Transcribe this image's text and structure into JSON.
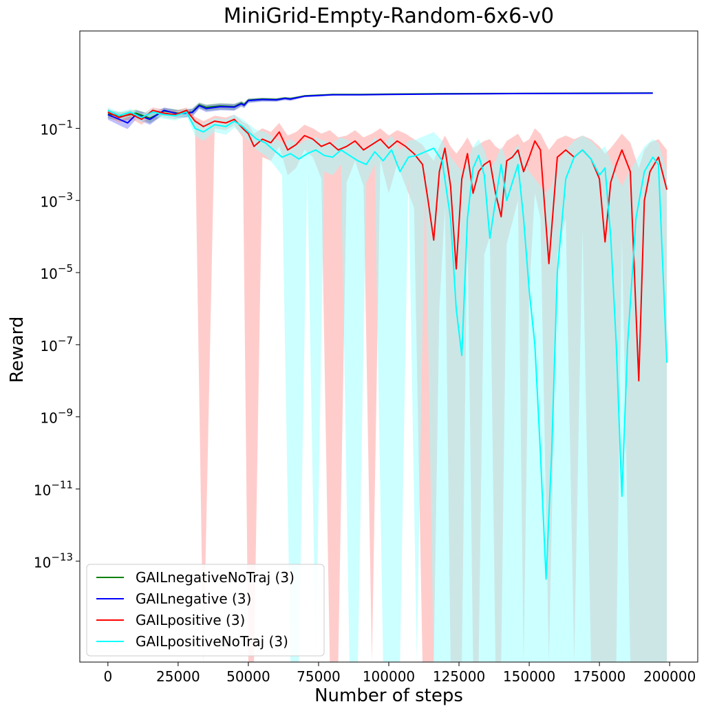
{
  "chart_data": {
    "type": "line",
    "title": "MiniGrid-Empty-Random-6x6-v0",
    "xlabel": "Number of steps",
    "ylabel": "Reward",
    "y_scale": "log",
    "xlim": [
      -10000,
      210000
    ],
    "ylim_log10": [
      -15.8,
      1.7
    ],
    "x_ticks": [
      0,
      25000,
      50000,
      75000,
      100000,
      125000,
      150000,
      175000,
      200000
    ],
    "x_tick_labels": [
      "0",
      "25000",
      "50000",
      "75000",
      "100000",
      "125000",
      "150000",
      "175000",
      "200000"
    ],
    "y_ticks_log10": [
      -1,
      -3,
      -5,
      -7,
      -9,
      -11,
      -13
    ],
    "y_tick_labels": [
      {
        "base": "10",
        "exp": "−1"
      },
      {
        "base": "10",
        "exp": "−3"
      },
      {
        "base": "10",
        "exp": "−5"
      },
      {
        "base": "10",
        "exp": "−7"
      },
      {
        "base": "10",
        "exp": "−9"
      },
      {
        "base": "10",
        "exp": "−11"
      },
      {
        "base": "10",
        "exp": "−13"
      }
    ],
    "legend_position": "lower-left",
    "series": [
      {
        "name": "GAILnegativeNoTraj (3)",
        "color": "#008000",
        "x": [
          0,
          5000,
          10000,
          15000,
          20000,
          25000,
          30000,
          32500,
          35000,
          40000,
          45000,
          47500,
          48500,
          50000,
          55000,
          60000,
          63000,
          65000,
          70000,
          75000,
          80000,
          90000,
          100000,
          115000,
          135000,
          150000,
          170000,
          194000
        ],
        "y_log10": [
          -0.6,
          -0.67,
          -0.58,
          -0.72,
          -0.52,
          -0.58,
          -0.55,
          -0.35,
          -0.42,
          -0.38,
          -0.4,
          -0.3,
          -0.34,
          -0.22,
          -0.19,
          -0.2,
          -0.16,
          -0.18,
          -0.1,
          -0.08,
          -0.06,
          -0.06,
          -0.05,
          -0.04,
          -0.035,
          -0.03,
          -0.025,
          -0.02
        ],
        "y_upper_log10": [
          -0.5,
          -0.55,
          -0.48,
          -0.6,
          -0.44,
          -0.48,
          -0.45,
          -0.28,
          -0.34,
          -0.3,
          -0.32,
          -0.24,
          -0.28,
          -0.17,
          -0.15,
          -0.16,
          -0.13,
          -0.14,
          -0.08,
          -0.06,
          -0.05,
          -0.05,
          -0.04,
          -0.03,
          -0.03,
          -0.025,
          -0.02,
          -0.015
        ],
        "y_lower_log10": [
          -0.72,
          -0.82,
          -0.7,
          -0.86,
          -0.62,
          -0.7,
          -0.66,
          -0.44,
          -0.52,
          -0.48,
          -0.5,
          -0.38,
          -0.42,
          -0.28,
          -0.24,
          -0.25,
          -0.2,
          -0.22,
          -0.12,
          -0.1,
          -0.08,
          -0.07,
          -0.06,
          -0.05,
          -0.04,
          -0.035,
          -0.03,
          -0.025
        ]
      },
      {
        "name": "GAILnegative (3)",
        "color": "#0000ff",
        "x": [
          0,
          5000,
          7000,
          10000,
          15000,
          20000,
          25000,
          30000,
          32500,
          35000,
          40000,
          45000,
          47500,
          48500,
          50000,
          55000,
          60000,
          63000,
          65000,
          70000,
          75000,
          80000,
          90000,
          100000,
          115000,
          135000,
          150000,
          170000,
          194000
        ],
        "y_log10": [
          -0.62,
          -0.78,
          -0.85,
          -0.62,
          -0.75,
          -0.5,
          -0.6,
          -0.56,
          -0.37,
          -0.45,
          -0.4,
          -0.41,
          -0.32,
          -0.36,
          -0.23,
          -0.2,
          -0.21,
          -0.17,
          -0.19,
          -0.11,
          -0.09,
          -0.07,
          -0.07,
          -0.06,
          -0.05,
          -0.04,
          -0.035,
          -0.03,
          -0.025
        ],
        "y_upper_log10": [
          -0.5,
          -0.62,
          -0.68,
          -0.5,
          -0.6,
          -0.42,
          -0.5,
          -0.46,
          -0.3,
          -0.36,
          -0.32,
          -0.33,
          -0.26,
          -0.3,
          -0.18,
          -0.16,
          -0.17,
          -0.14,
          -0.15,
          -0.09,
          -0.07,
          -0.06,
          -0.06,
          -0.05,
          -0.04,
          -0.03,
          -0.03,
          -0.025,
          -0.02
        ],
        "y_lower_log10": [
          -0.76,
          -0.95,
          -1.02,
          -0.75,
          -0.9,
          -0.6,
          -0.72,
          -0.68,
          -0.46,
          -0.55,
          -0.5,
          -0.51,
          -0.4,
          -0.44,
          -0.3,
          -0.26,
          -0.26,
          -0.22,
          -0.24,
          -0.14,
          -0.12,
          -0.09,
          -0.08,
          -0.07,
          -0.06,
          -0.05,
          -0.04,
          -0.035,
          -0.03
        ]
      },
      {
        "name": "GAILpositive (3)",
        "color": "#ff0000",
        "fill_color": "#ff9999",
        "x": [
          0,
          4000,
          8000,
          12000,
          16000,
          20000,
          24000,
          28000,
          31000,
          34000,
          38000,
          42000,
          45000,
          48000,
          50000,
          52000,
          55000,
          58000,
          61000,
          64000,
          67000,
          70000,
          73000,
          76000,
          79000,
          82000,
          85000,
          88000,
          91000,
          94000,
          97000,
          100000,
          103000,
          106000,
          109000,
          112000,
          114000,
          116000,
          118000,
          120000,
          122000,
          124000,
          126000,
          128000,
          130000,
          132000,
          134000,
          136000,
          138000,
          140000,
          142000,
          144000,
          146000,
          148000,
          150000,
          152000,
          154000,
          157000,
          160000,
          163000,
          166000,
          169000,
          172000,
          175000,
          177000,
          179000,
          181000,
          183000,
          186000,
          189000,
          191000,
          193000,
          196000,
          199000
        ],
        "y_log10": [
          -0.55,
          -0.7,
          -0.6,
          -0.75,
          -0.5,
          -0.58,
          -0.62,
          -0.5,
          -0.8,
          -0.95,
          -0.8,
          -0.85,
          -0.75,
          -1.0,
          -1.15,
          -1.5,
          -1.3,
          -1.4,
          -1.1,
          -1.6,
          -1.45,
          -1.2,
          -1.3,
          -1.5,
          -1.4,
          -1.6,
          -1.5,
          -1.35,
          -1.6,
          -1.45,
          -1.3,
          -1.55,
          -1.35,
          -1.5,
          -1.7,
          -2.0,
          -3.0,
          -4.1,
          -2.2,
          -1.55,
          -2.6,
          -4.9,
          -2.4,
          -1.7,
          -2.8,
          -2.2,
          -2.0,
          -1.9,
          -2.8,
          -3.45,
          -1.9,
          -1.8,
          -1.6,
          -2.2,
          -1.8,
          -1.35,
          -1.6,
          -4.75,
          -1.8,
          -1.6,
          -1.8,
          -1.6,
          -1.85,
          -2.4,
          -4.15,
          -2.5,
          -2.0,
          -1.6,
          -2.2,
          -8.0,
          -3.0,
          -2.2,
          -1.8,
          -2.7
        ],
        "y_upper_log10": [
          -0.45,
          -0.58,
          -0.5,
          -0.62,
          -0.42,
          -0.48,
          -0.52,
          -0.42,
          -0.68,
          -0.8,
          -0.65,
          -0.7,
          -0.62,
          -0.82,
          -0.9,
          -1.15,
          -1.0,
          -1.1,
          -0.85,
          -1.2,
          -1.1,
          -0.9,
          -1.0,
          -1.15,
          -1.05,
          -1.25,
          -1.2,
          -1.05,
          -1.25,
          -1.15,
          -1.0,
          -1.2,
          -1.05,
          -1.15,
          -1.3,
          -1.45,
          -1.7,
          -1.9,
          -1.5,
          -1.2,
          -1.5,
          -1.7,
          -1.5,
          -1.25,
          -1.55,
          -1.45,
          -1.35,
          -1.3,
          -1.5,
          -1.6,
          -1.35,
          -1.25,
          -1.15,
          -1.4,
          -1.3,
          -1.0,
          -1.15,
          -1.6,
          -1.3,
          -1.2,
          -1.3,
          -1.2,
          -1.3,
          -1.5,
          -1.7,
          -1.55,
          -1.35,
          -1.15,
          -1.4,
          -2.1,
          -1.6,
          -1.4,
          -1.3,
          -1.6
        ],
        "y_lower_log10": [
          -0.65,
          -0.85,
          -0.72,
          -0.9,
          -0.6,
          -0.7,
          -0.75,
          -0.6,
          -0.95,
          -15.8,
          -1.0,
          -1.05,
          -0.92,
          -1.25,
          -15.8,
          -15.8,
          -1.8,
          -1.9,
          -1.5,
          -2.3,
          -2.1,
          -1.6,
          -1.8,
          -2.4,
          -15.8,
          -15.8,
          -2.5,
          -1.9,
          -2.6,
          -15.8,
          -1.9,
          -2.8,
          -2.0,
          -2.6,
          -3.2,
          -15.8,
          -15.8,
          -15.8,
          -6.0,
          -3.2,
          -15.8,
          -15.8,
          -15.8,
          -3.5,
          -15.8,
          -15.8,
          -4.5,
          -4.0,
          -15.8,
          -15.8,
          -4.2,
          -3.6,
          -3.0,
          -15.8,
          -5.5,
          -2.8,
          -3.5,
          -15.8,
          -4.5,
          -3.5,
          -15.8,
          -3.8,
          -15.8,
          -15.8,
          -15.8,
          -15.8,
          -15.8,
          -4.0,
          -15.8,
          -15.8,
          -15.8,
          -15.8,
          -15.8,
          -15.8
        ]
      },
      {
        "name": "GAILpositiveNoTraj (3)",
        "color": "#00ffff",
        "fill_color": "#99ffff",
        "x": [
          0,
          4000,
          8000,
          12000,
          16000,
          20000,
          24000,
          28000,
          31000,
          34000,
          38000,
          42000,
          45000,
          48000,
          50000,
          53000,
          56000,
          59000,
          62000,
          65000,
          68000,
          71000,
          74000,
          77000,
          80000,
          83000,
          86000,
          89000,
          92000,
          95000,
          98000,
          101000,
          104000,
          107000,
          110000,
          113000,
          116000,
          119000,
          122000,
          124000,
          126000,
          128000,
          130000,
          132000,
          134000,
          136000,
          138000,
          140000,
          142000,
          144000,
          146000,
          148000,
          150000,
          152000,
          154000,
          156000,
          158000,
          160000,
          163000,
          166000,
          169000,
          172000,
          175000,
          177000,
          179000,
          181000,
          183000,
          185000,
          188000,
          191000,
          194000,
          196000,
          199000
        ],
        "y_log10": [
          -0.5,
          -0.65,
          -0.55,
          -0.7,
          -0.55,
          -0.62,
          -0.65,
          -0.55,
          -1.0,
          -1.1,
          -0.9,
          -0.95,
          -0.8,
          -0.95,
          -1.1,
          -1.3,
          -1.4,
          -1.6,
          -1.8,
          -1.7,
          -1.85,
          -1.7,
          -1.6,
          -1.75,
          -1.8,
          -1.6,
          -1.75,
          -1.9,
          -2.0,
          -1.65,
          -1.9,
          -1.6,
          -2.2,
          -1.8,
          -1.75,
          -1.65,
          -1.55,
          -1.9,
          -3.5,
          -6.0,
          -7.3,
          -3.5,
          -2.1,
          -1.75,
          -2.3,
          -4.05,
          -3.0,
          -2.0,
          -3.0,
          -2.5,
          -2.0,
          -3.5,
          -5.5,
          -7.0,
          -10.0,
          -13.5,
          -10.0,
          -5.0,
          -2.4,
          -1.8,
          -1.6,
          -1.85,
          -2.3,
          -2.1,
          -4.0,
          -7.0,
          -11.2,
          -7.0,
          -3.5,
          -2.2,
          -1.8,
          -2.0,
          -7.5
        ],
        "y_upper_log10": [
          -0.42,
          -0.55,
          -0.46,
          -0.6,
          -0.46,
          -0.52,
          -0.55,
          -0.46,
          -0.82,
          -0.88,
          -0.72,
          -0.75,
          -0.62,
          -0.75,
          -0.88,
          -1.05,
          -1.1,
          -1.25,
          -1.4,
          -1.3,
          -1.45,
          -1.3,
          -1.25,
          -1.35,
          -1.4,
          -1.25,
          -1.35,
          -1.45,
          -1.55,
          -1.25,
          -1.45,
          -1.2,
          -1.6,
          -1.35,
          -1.3,
          -1.2,
          -1.1,
          -1.35,
          -1.8,
          -2.0,
          -2.2,
          -1.9,
          -1.5,
          -1.3,
          -1.6,
          -2.1,
          -1.9,
          -1.5,
          -1.9,
          -1.7,
          -1.45,
          -1.9,
          -2.2,
          -2.4,
          -2.6,
          -2.8,
          -2.6,
          -2.0,
          -1.6,
          -1.35,
          -1.2,
          -1.35,
          -1.6,
          -1.5,
          -1.9,
          -2.3,
          -2.6,
          -2.3,
          -1.9,
          -1.5,
          -1.3,
          -1.4,
          -2.2
        ],
        "y_lower_log10": [
          -0.6,
          -0.78,
          -0.66,
          -0.82,
          -0.66,
          -0.74,
          -0.78,
          -0.66,
          -1.2,
          -1.35,
          -1.1,
          -1.18,
          -0.98,
          -1.18,
          -1.35,
          -1.6,
          -1.75,
          -2.0,
          -2.3,
          -15.8,
          -15.8,
          -2.2,
          -15.8,
          -2.2,
          -2.3,
          -2.0,
          -15.8,
          -15.8,
          -2.5,
          -2.0,
          -15.8,
          -15.8,
          -15.8,
          -2.3,
          -15.8,
          -2.1,
          -15.8,
          -15.8,
          -15.8,
          -15.8,
          -15.8,
          -15.8,
          -15.8,
          -15.8,
          -15.8,
          -15.8,
          -15.8,
          -15.8,
          -15.8,
          -15.8,
          -15.8,
          -15.8,
          -15.8,
          -15.8,
          -15.8,
          -15.8,
          -15.8,
          -15.8,
          -15.8,
          -15.8,
          -15.8,
          -15.8,
          -15.8,
          -15.8,
          -15.8,
          -15.8,
          -15.8,
          -15.8,
          -15.8,
          -15.8,
          -15.8,
          -15.8,
          -15.8
        ]
      }
    ]
  }
}
